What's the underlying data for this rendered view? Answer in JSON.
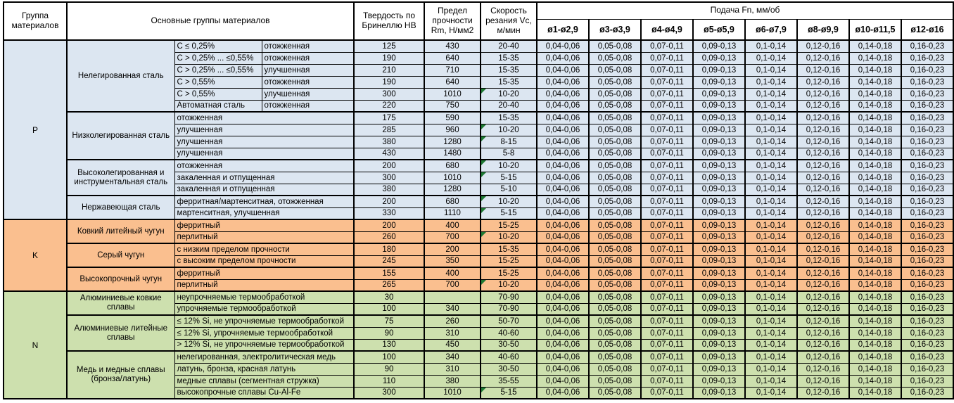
{
  "header": {
    "col_group": "Группа материалов",
    "col_main_groups": "Основные группы материалов",
    "col_hardness": "Твердость по Бринеллю HB",
    "col_strength": "Предел прочности Rm, Н/мм2",
    "col_speed": "Скорость резания Vc, м/мин",
    "col_feed": "Подача Fn, мм/об",
    "diameters": [
      "ø1-ø2,9",
      "ø3-ø3,9",
      "ø4-ø4,9",
      "ø5-ø5,9",
      "ø6-ø7,9",
      "ø8-ø9,9",
      "ø10-ø11,5",
      "ø12-ø16"
    ]
  },
  "colors": {
    "p_section": "#dce6f1",
    "k_section": "#fabf8f",
    "n_section": "#cde0ae",
    "error_flag": "#1e7a33",
    "border": "#000000"
  },
  "feeds": [
    "0,04-0,06",
    "0,05-0,08",
    "0,07-0,11",
    "0,09-0,13",
    "0,1-0,14",
    "0,12-0,16",
    "0,14-0,18",
    "0,16-0,23"
  ],
  "sections": [
    {
      "letter": "P",
      "color": "p",
      "groups": [
        {
          "name": "Нелегированная сталь",
          "rows": [
            {
              "c": "C ≤ 0,25%",
              "d": "отожженная",
              "hb": "125",
              "rm": "430",
              "vc": "20-40",
              "flag": false
            },
            {
              "c": "C > 0,25% ... ≤0,55%",
              "d": "отожженная",
              "hb": "190",
              "rm": "640",
              "vc": "15-35",
              "flag": false
            },
            {
              "c": "C > 0,25% ... ≤0,55%",
              "d": "улучшенная",
              "hb": "210",
              "rm": "710",
              "vc": "15-35",
              "flag": false
            },
            {
              "c": "C > 0,55%",
              "d": "отожженная",
              "hb": "190",
              "rm": "640",
              "vc": "15-35",
              "flag": false
            },
            {
              "c": "C > 0,55%",
              "d": "улучшенная",
              "hb": "300",
              "rm": "1010",
              "vc": "10-20",
              "flag": true
            },
            {
              "c": "Автоматная сталь",
              "d": "отожженная",
              "hb": "220",
              "rm": "750",
              "vc": "20-40",
              "flag": false
            }
          ]
        },
        {
          "name": "Низколегированная сталь",
          "rows": [
            {
              "cd": "отожженная",
              "hb": "175",
              "rm": "590",
              "vc": "15-35",
              "flag": false
            },
            {
              "cd": "улучшенная",
              "hb": "285",
              "rm": "960",
              "vc": "10-20",
              "flag": true
            },
            {
              "cd": "улучшенная",
              "hb": "380",
              "rm": "1280",
              "vc": "8-15",
              "flag": true
            },
            {
              "cd": "улучшенная",
              "hb": "430",
              "rm": "1480",
              "vc": "5-8",
              "flag": false
            }
          ]
        },
        {
          "name": "Высоколегированная и инструментальная сталь",
          "rows": [
            {
              "cd": "отожженная",
              "hb": "200",
              "rm": "680",
              "vc": "10-20",
              "flag": true
            },
            {
              "cd": "закаленная и отпущенная",
              "hb": "300",
              "rm": "1010",
              "vc": "5-15",
              "flag": true
            },
            {
              "cd": "закаленная и отпущенная",
              "hb": "380",
              "rm": "1280",
              "vc": "5-10",
              "flag": false
            }
          ]
        },
        {
          "name": "Нержавеющая сталь",
          "rows": [
            {
              "cd": "ферритная/мартенситная, отожженная",
              "hb": "200",
              "rm": "680",
              "vc": "10-20",
              "flag": true
            },
            {
              "cd": "мартенситная, улучшенная",
              "hb": "330",
              "rm": "1110",
              "vc": "5-15",
              "flag": true
            }
          ]
        }
      ]
    },
    {
      "letter": "K",
      "color": "k",
      "groups": [
        {
          "name": "Ковкий литейный чугун",
          "rows": [
            {
              "cd": "ферритный",
              "hb": "200",
              "rm": "400",
              "vc": "15-25",
              "flag": false
            },
            {
              "cd": "перлитный",
              "hb": "260",
              "rm": "700",
              "vc": "10-20",
              "flag": true
            }
          ]
        },
        {
          "name": "Серый чугун",
          "rows": [
            {
              "cd": "с низким пределом прочности",
              "hb": "180",
              "rm": "200",
              "vc": "15-35",
              "flag": false
            },
            {
              "cd": "с высоким пределом прочности",
              "hb": "245",
              "rm": "350",
              "vc": "15-25",
              "flag": false
            }
          ]
        },
        {
          "name": "Высокопрочный чугун",
          "rows": [
            {
              "cd": "ферритный",
              "hb": "155",
              "rm": "400",
              "vc": "15-25",
              "flag": false
            },
            {
              "cd": "перлитный",
              "hb": "265",
              "rm": "700",
              "vc": "10-20",
              "flag": true
            }
          ]
        }
      ]
    },
    {
      "letter": "N",
      "color": "n",
      "groups": [
        {
          "name": "Алюминиевые ковкие сплавы",
          "rows": [
            {
              "cd": "неупрочняемые термообработкой",
              "hb": "30",
              "rm": "",
              "vc": "70-90",
              "flag": false
            },
            {
              "cd": "упрочняемые термообработкой",
              "hb": "100",
              "rm": "340",
              "vc": "70-90",
              "flag": false
            }
          ]
        },
        {
          "name": "Алюминиевые литейные сплавы",
          "rows": [
            {
              "cd": "≤ 12% Si, не упрочняемые термообработкой",
              "hb": "75",
              "rm": "260",
              "vc": "50-70",
              "flag": false
            },
            {
              "cd": "≤ 12% Si, упрочняемые термообработкой",
              "hb": "90",
              "rm": "310",
              "vc": "40-60",
              "flag": false
            },
            {
              "cd": "> 12% Si, не упрочняемые термообработкой",
              "hb": "130",
              "rm": "450",
              "vc": "30-50",
              "flag": false
            }
          ]
        },
        {
          "name": "Медь и медные сплавы (бронза/латунь)",
          "rows": [
            {
              "cd": "нелегированная, электролитическая медь",
              "hb": "100",
              "rm": "340",
              "vc": "40-60",
              "flag": false
            },
            {
              "cd": "латунь, бронза, красная латунь",
              "hb": "90",
              "rm": "310",
              "vc": "30-50",
              "flag": false
            },
            {
              "cd": "медные сплавы (сегментная стружка)",
              "hb": "110",
              "rm": "380",
              "vc": "35-55",
              "flag": false
            },
            {
              "cd": "высокопрочные сплавы Cu-Al-Fe",
              "hb": "300",
              "rm": "1010",
              "vc": "5-15",
              "flag": true
            }
          ]
        }
      ]
    }
  ]
}
